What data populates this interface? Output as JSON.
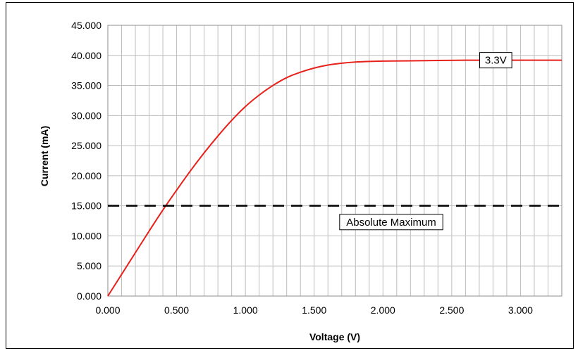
{
  "chart_data": {
    "type": "line",
    "title": "",
    "xlabel": "Voltage (V)",
    "ylabel": "Current (mA)",
    "xlim": [
      0,
      3.3
    ],
    "ylim": [
      0,
      45
    ],
    "x_ticks": [
      "0.000",
      "0.500",
      "1.000",
      "1.500",
      "2.000",
      "2.500",
      "3.000"
    ],
    "x_tick_values": [
      0,
      0.5,
      1.0,
      1.5,
      2.0,
      2.5,
      3.0
    ],
    "y_ticks": [
      "0.000",
      "5.000",
      "10.000",
      "15.000",
      "20.000",
      "25.000",
      "30.000",
      "35.000",
      "40.000",
      "45.000"
    ],
    "y_tick_values": [
      0,
      5,
      10,
      15,
      20,
      25,
      30,
      35,
      40,
      45
    ],
    "x_minor_step": 0.1,
    "grid": true,
    "legend": "none",
    "series": [
      {
        "name": "3.3V",
        "color": "#e8201a",
        "style": "solid",
        "x": [
          0,
          0.1,
          0.2,
          0.3,
          0.4,
          0.5,
          0.6,
          0.7,
          0.8,
          0.9,
          1.0,
          1.1,
          1.2,
          1.3,
          1.4,
          1.5,
          1.6,
          1.7,
          1.8,
          1.9,
          2.0,
          2.2,
          2.4,
          2.6,
          2.8,
          3.0,
          3.2,
          3.3
        ],
        "y": [
          0,
          3.6,
          7.2,
          10.8,
          14.3,
          17.6,
          20.8,
          23.8,
          26.6,
          29.2,
          31.5,
          33.4,
          35.0,
          36.3,
          37.2,
          37.9,
          38.4,
          38.7,
          38.9,
          39.0,
          39.05,
          39.1,
          39.15,
          39.2,
          39.2,
          39.2,
          39.2,
          39.2
        ]
      },
      {
        "name": "Absolute Maximum",
        "color": "#000000",
        "style": "dashed",
        "x": [
          0,
          3.3
        ],
        "y": [
          15,
          15
        ]
      }
    ],
    "annotations": [
      {
        "text": "3.3V",
        "x": 2.82,
        "y": 39.2
      },
      {
        "text": "Absolute Maximum",
        "x": 2.06,
        "y": 12.3
      }
    ]
  }
}
